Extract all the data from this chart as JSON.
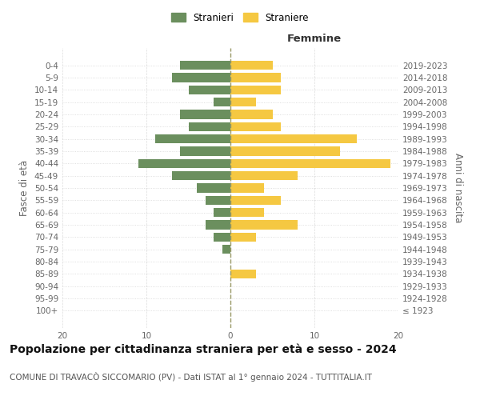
{
  "age_groups": [
    "100+",
    "95-99",
    "90-94",
    "85-89",
    "80-84",
    "75-79",
    "70-74",
    "65-69",
    "60-64",
    "55-59",
    "50-54",
    "45-49",
    "40-44",
    "35-39",
    "30-34",
    "25-29",
    "20-24",
    "15-19",
    "10-14",
    "5-9",
    "0-4"
  ],
  "birth_years": [
    "≤ 1923",
    "1924-1928",
    "1929-1933",
    "1934-1938",
    "1939-1943",
    "1944-1948",
    "1949-1953",
    "1954-1958",
    "1959-1963",
    "1964-1968",
    "1969-1973",
    "1974-1978",
    "1979-1983",
    "1984-1988",
    "1989-1993",
    "1994-1998",
    "1999-2003",
    "2004-2008",
    "2009-2013",
    "2014-2018",
    "2019-2023"
  ],
  "males": [
    0,
    0,
    0,
    0,
    0,
    1,
    2,
    3,
    2,
    3,
    4,
    7,
    11,
    6,
    9,
    5,
    6,
    2,
    5,
    7,
    6
  ],
  "females": [
    0,
    0,
    0,
    3,
    0,
    0,
    3,
    8,
    4,
    6,
    4,
    8,
    19,
    13,
    15,
    6,
    5,
    3,
    6,
    6,
    5
  ],
  "male_color": "#6b8f5e",
  "female_color": "#f5c842",
  "title": "Popolazione per cittadinanza straniera per età e sesso - 2024",
  "subtitle": "COMUNE DI TRAVACÒ SICCOMARIO (PV) - Dati ISTAT al 1° gennaio 2024 - TUTTITALIA.IT",
  "xlabel_right": "Femmine",
  "ylabel_left": "Fasce di età",
  "ylabel_right": "Anni di nascita",
  "legend_males": "Stranieri",
  "legend_females": "Straniere",
  "xlim": 20,
  "background_color": "#ffffff",
  "grid_color": "#cccccc",
  "center_line_color": "#999966",
  "title_fontsize": 10,
  "subtitle_fontsize": 7.5,
  "tick_fontsize": 7.5,
  "label_fontsize": 8.5
}
